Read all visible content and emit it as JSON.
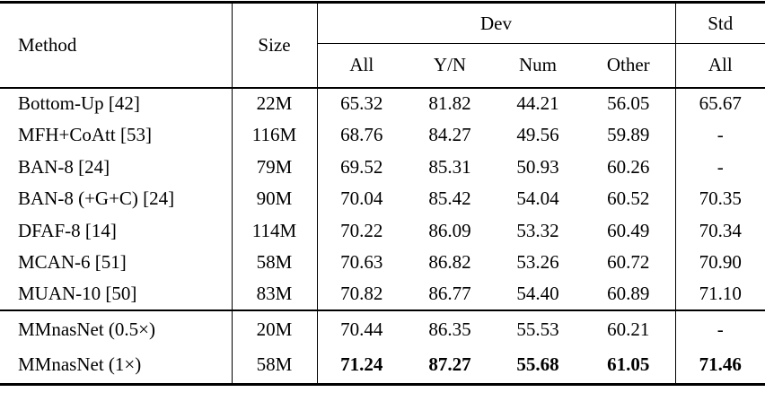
{
  "table": {
    "headers": {
      "method": "Method",
      "size": "Size",
      "dev_group": "Dev",
      "std_group": "Std",
      "dev_all": "All",
      "dev_yn": "Y/N",
      "dev_num": "Num",
      "dev_other": "Other",
      "std_all": "All"
    },
    "rows": [
      {
        "method": "Bottom-Up [42]",
        "size": "22M",
        "dev_all": "65.32",
        "dev_yn": "81.82",
        "dev_num": "44.21",
        "dev_other": "56.05",
        "std_all": "65.67"
      },
      {
        "method": "MFH+CoAtt [53]",
        "size": "116M",
        "dev_all": "68.76",
        "dev_yn": "84.27",
        "dev_num": "49.56",
        "dev_other": "59.89",
        "std_all": "-"
      },
      {
        "method": "BAN-8 [24]",
        "size": "79M",
        "dev_all": "69.52",
        "dev_yn": "85.31",
        "dev_num": "50.93",
        "dev_other": "60.26",
        "std_all": "-"
      },
      {
        "method": "BAN-8 (+G+C) [24]",
        "size": "90M",
        "dev_all": "70.04",
        "dev_yn": "85.42",
        "dev_num": "54.04",
        "dev_other": "60.52",
        "std_all": "70.35"
      },
      {
        "method": "DFAF-8 [14]",
        "size": "114M",
        "dev_all": "70.22",
        "dev_yn": "86.09",
        "dev_num": "53.32",
        "dev_other": "60.49",
        "std_all": "70.34"
      },
      {
        "method": "MCAN-6 [51]",
        "size": "58M",
        "dev_all": "70.63",
        "dev_yn": "86.82",
        "dev_num": "53.26",
        "dev_other": "60.72",
        "std_all": "70.90"
      },
      {
        "method": "MUAN-10 [50]",
        "size": "83M",
        "dev_all": "70.82",
        "dev_yn": "86.77",
        "dev_num": "54.40",
        "dev_other": "60.89",
        "std_all": "71.10"
      },
      {
        "method": "MMnasNet (0.5×)",
        "size": "20M",
        "dev_all": "70.44",
        "dev_yn": "86.35",
        "dev_num": "55.53",
        "dev_other": "60.21",
        "std_all": "-"
      },
      {
        "method": "MMnasNet (1×)",
        "size": "58M",
        "dev_all": "71.24",
        "dev_yn": "87.27",
        "dev_num": "55.68",
        "dev_other": "61.05",
        "std_all": "71.46"
      }
    ]
  }
}
